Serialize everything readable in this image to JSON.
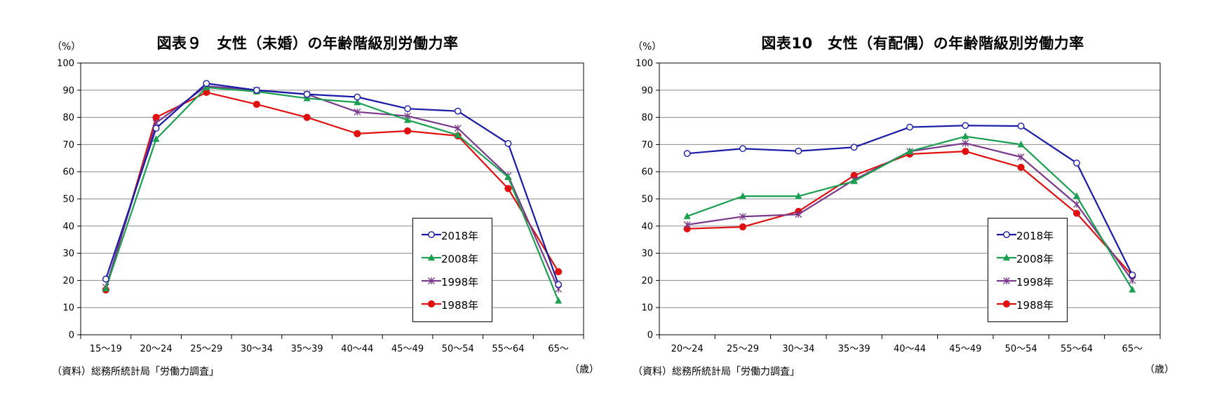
{
  "chart_data": [
    {
      "type": "line",
      "title": "図表９　女性（未婚）の年齢階級別労働力率",
      "ylabel": "（%）",
      "xlabel": "（歳）",
      "source": "（資料）総務所統計局「労働力調査」",
      "categories": [
        "15～19",
        "20～24",
        "25～29",
        "30～34",
        "35～39",
        "40～44",
        "45～49",
        "50～54",
        "55～64",
        "65～"
      ],
      "ylim": [
        0,
        100
      ],
      "yticks": [
        "0",
        "10",
        "20",
        "30",
        "40",
        "50",
        "60",
        "70",
        "80",
        "90",
        "100"
      ],
      "grid": true,
      "legend_position": "lower-right",
      "series": [
        {
          "name": "2018年",
          "color": "#1a1aa8",
          "marker": "circle-open",
          "values": [
            20.5,
            76,
            92.5,
            90,
            88.5,
            87.5,
            83.2,
            82.3,
            70.4,
            18.5
          ]
        },
        {
          "name": "2008年",
          "color": "#1aa050",
          "marker": "triangle",
          "values": [
            17,
            72,
            91,
            89.5,
            87,
            85.5,
            79,
            73.5,
            58,
            12.5
          ]
        },
        {
          "name": "1998年",
          "color": "#7a3a8c",
          "marker": "x",
          "values": [
            17.5,
            78,
            91.5,
            90,
            88.5,
            82,
            80.5,
            76,
            58.5,
            16.8
          ]
        },
        {
          "name": "1988年",
          "color": "#e01010",
          "marker": "circle",
          "values": [
            16.5,
            80,
            89.2,
            84.8,
            80,
            74,
            75,
            73.2,
            53.8,
            23.2
          ]
        }
      ]
    },
    {
      "type": "line",
      "title": "図表10　女性（有配偶）の年齢階級別労働力率",
      "ylabel": "（%）",
      "xlabel": "（歳）",
      "source": "（資料）総務所統計局「労働力調査」",
      "categories": [
        "20～24",
        "25～29",
        "30～34",
        "35～39",
        "40～44",
        "45～49",
        "50～54",
        "55～64",
        "65～"
      ],
      "ylim": [
        0,
        100
      ],
      "yticks": [
        "0",
        "10",
        "20",
        "30",
        "40",
        "50",
        "60",
        "70",
        "80",
        "90",
        "100"
      ],
      "grid": true,
      "legend_position": "lower-right",
      "series": [
        {
          "name": "2018年",
          "color": "#1a1aa8",
          "marker": "circle-open",
          "values": [
            66.7,
            68.5,
            67.6,
            69,
            76.4,
            77,
            76.8,
            63.2,
            22
          ]
        },
        {
          "name": "2008年",
          "color": "#1aa050",
          "marker": "triangle",
          "values": [
            43.6,
            51,
            51,
            56.5,
            67.5,
            73,
            70,
            51,
            16.6
          ]
        },
        {
          "name": "1998年",
          "color": "#7a3a8c",
          "marker": "x",
          "values": [
            40.5,
            43.5,
            44.3,
            57,
            67.5,
            70.5,
            65.4,
            48,
            20
          ]
        },
        {
          "name": "1988年",
          "color": "#e01010",
          "marker": "circle",
          "values": [
            39,
            39.7,
            45.4,
            58.6,
            66.5,
            67.5,
            61.6,
            44.7,
            21.8
          ]
        }
      ]
    }
  ]
}
